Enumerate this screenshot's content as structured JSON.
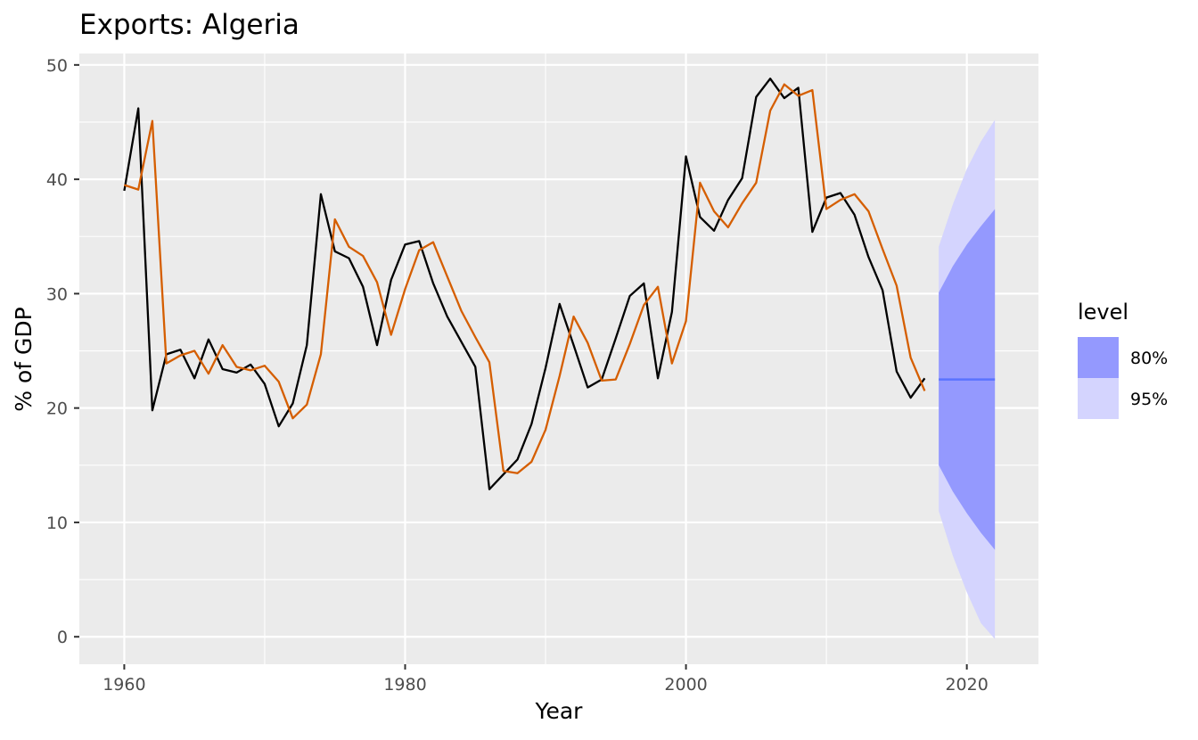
{
  "chart_data": {
    "type": "line",
    "title": "Exports: Algeria",
    "xlabel": "Year",
    "ylabel": "% of GDP",
    "xlim": [
      1956.8,
      2025.1
    ],
    "ylim": [
      -2.4,
      51.0
    ],
    "x_ticks": [
      1960,
      1980,
      2000,
      2020
    ],
    "y_ticks": [
      0,
      10,
      20,
      30,
      40,
      50
    ],
    "grid": true,
    "legend": {
      "title": "level",
      "position": "right",
      "items": [
        {
          "label": "80%",
          "color": "#9499fe"
        },
        {
          "label": "95%",
          "color": "#d4d4fe"
        }
      ]
    },
    "series": [
      {
        "color": "#000000",
        "x": [
          1960,
          1961,
          1962,
          1963,
          1964,
          1965,
          1966,
          1967,
          1968,
          1969,
          1970,
          1971,
          1972,
          1973,
          1974,
          1975,
          1976,
          1977,
          1978,
          1979,
          1980,
          1981,
          1982,
          1983,
          1984,
          1985,
          1986,
          1987,
          1988,
          1989,
          1990,
          1991,
          1992,
          1993,
          1994,
          1995,
          1996,
          1997,
          1998,
          1999,
          2000,
          2001,
          2002,
          2003,
          2004,
          2005,
          2006,
          2007,
          2008,
          2009,
          2010,
          2011,
          2012,
          2013,
          2014,
          2015,
          2016,
          2017
        ],
        "values": [
          39.0,
          46.2,
          19.8,
          24.7,
          25.1,
          22.6,
          26.0,
          23.4,
          23.1,
          23.8,
          22.1,
          18.4,
          20.4,
          25.5,
          38.7,
          33.7,
          33.1,
          30.6,
          25.5,
          31.2,
          34.3,
          34.6,
          30.9,
          28.0,
          25.8,
          23.6,
          12.9,
          14.2,
          15.5,
          18.6,
          23.5,
          29.1,
          25.5,
          21.8,
          22.5,
          26.1,
          29.8,
          30.9,
          22.6,
          28.4,
          42.0,
          36.7,
          35.5,
          38.2,
          40.1,
          47.2,
          48.8,
          47.1,
          48.0,
          35.4,
          38.4,
          38.8,
          36.9,
          33.2,
          30.3,
          23.2,
          20.9,
          22.6
        ]
      },
      {
        "color": "#d55e00",
        "x": [
          1960,
          1961,
          1962,
          1963,
          1964,
          1965,
          1966,
          1967,
          1968,
          1969,
          1970,
          1971,
          1972,
          1973,
          1974,
          1975,
          1976,
          1977,
          1978,
          1979,
          1980,
          1981,
          1982,
          1983,
          1984,
          1985,
          1986,
          1987,
          1988,
          1989,
          1990,
          1991,
          1992,
          1993,
          1994,
          1995,
          1996,
          1997,
          1998,
          1999,
          2000,
          2001,
          2002,
          2003,
          2004,
          2005,
          2006,
          2007,
          2008,
          2009,
          2010,
          2011,
          2012,
          2013,
          2014,
          2015,
          2016,
          2017
        ],
        "values": [
          39.5,
          39.1,
          45.1,
          23.9,
          24.6,
          25.0,
          23.0,
          25.5,
          23.6,
          23.3,
          23.7,
          22.3,
          19.1,
          20.3,
          24.7,
          36.5,
          34.1,
          33.3,
          31.0,
          26.4,
          30.4,
          33.8,
          34.5,
          31.5,
          28.5,
          26.2,
          24.0,
          14.5,
          14.3,
          15.3,
          18.1,
          22.8,
          28.0,
          25.7,
          22.4,
          22.5,
          25.6,
          29.0,
          30.6,
          23.9,
          27.6,
          39.7,
          37.2,
          35.8,
          37.9,
          39.7,
          46.0,
          48.3,
          47.3,
          47.8,
          37.4,
          38.2,
          38.7,
          37.2,
          33.9,
          30.7,
          24.4,
          21.5
        ]
      }
    ],
    "forecast": {
      "x": [
        2018,
        2019,
        2020,
        2021,
        2022
      ],
      "mean": [
        22.5,
        22.5,
        22.5,
        22.5,
        22.5
      ],
      "lower80": [
        15.0,
        12.7,
        10.8,
        9.1,
        7.6
      ],
      "upper80": [
        30.1,
        32.4,
        34.3,
        35.9,
        37.4
      ],
      "lower95": [
        11.0,
        7.1,
        3.9,
        1.2,
        -0.2
      ],
      "upper95": [
        34.1,
        37.8,
        40.9,
        43.3,
        45.2
      ],
      "mean_color": "#5a73ff",
      "color80": "#9499fe",
      "color95": "#d4d4fe"
    }
  }
}
